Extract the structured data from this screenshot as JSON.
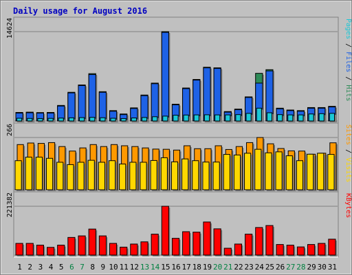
{
  "chart_data": {
    "title": "Daily usage for August 2016",
    "type": "bar",
    "x": [
      "1",
      "2",
      "3",
      "4",
      "5",
      "6",
      "7",
      "8",
      "9",
      "10",
      "11",
      "12",
      "13",
      "14",
      "15",
      "16",
      "17",
      "18",
      "19",
      "20",
      "21",
      "22",
      "23",
      "24",
      "25",
      "26",
      "27",
      "28",
      "29",
      "30",
      "31"
    ],
    "weekend_days": [
      "6",
      "7",
      "13",
      "14",
      "20",
      "21",
      "27",
      "28"
    ],
    "panels": [
      {
        "id": "top",
        "ymax_label": "14624",
        "ymax": 14624,
        "right_label": {
          "parts": [
            "Pages",
            " / ",
            "Files",
            " / ",
            "Hits"
          ]
        },
        "series": [
          {
            "name": "Hits",
            "color": "#2e8b57",
            "values": [
              1400,
              1450,
              1380,
              1400,
              2550,
              4700,
              5900,
              7750,
              4800,
              1700,
              1150,
              2150,
              4250,
              6200,
              14624,
              2750,
              5400,
              6800,
              8800,
              8700,
              1550,
              1950,
              3950,
              7800,
              8400,
              2100,
              1800,
              1700,
              2200,
              2200,
              2400
            ]
          },
          {
            "name": "Files",
            "color": "#1e62e6",
            "values": [
              1300,
              1350,
              1300,
              1300,
              2450,
              4600,
              5800,
              7600,
              4700,
              1600,
              1050,
              2050,
              4150,
              6100,
              14500,
              2650,
              5300,
              6700,
              8700,
              8600,
              1450,
              1850,
              3850,
              6200,
              8200,
              2000,
              1700,
              1600,
              2100,
              2100,
              2300
            ]
          },
          {
            "name": "Pages",
            "color": "#19c8d7",
            "values": [
              450,
              420,
              400,
              430,
              480,
              520,
              560,
              600,
              540,
              450,
              400,
              500,
              580,
              700,
              800,
              950,
              980,
              1000,
              1020,
              1000,
              1000,
              1050,
              1250,
              2100,
              1350,
              1050,
              1000,
              1000,
              1150,
              1200,
              1250
            ]
          }
        ]
      },
      {
        "id": "mid",
        "ymax_label": "266",
        "ymax": 266,
        "right_label": {
          "parts": [
            "Sites",
            " / ",
            "Visits"
          ]
        },
        "series": [
          {
            "name": "Visits",
            "color": "#ff9900",
            "values": [
              230,
              238,
              236,
              240,
              220,
              197,
              213,
              230,
              220,
              230,
              224,
              220,
              213,
              207,
              206,
              202,
              224,
              209,
              209,
              224,
              205,
              220,
              240,
              266,
              234,
              210,
              198,
              197,
              181,
              186,
              239
            ]
          },
          {
            "name": "Sites",
            "color": "#ffd700",
            "values": [
              148,
              166,
              166,
              160,
              140,
              128,
              140,
              150,
              140,
              148,
              131,
              140,
              140,
              149,
              163,
              142,
              157,
              148,
              141,
              141,
              180,
              177,
              186,
              206,
              188,
              193,
              173,
              148,
              181,
              186,
              180
            ]
          }
        ]
      },
      {
        "id": "bot",
        "ymax_label": "221382",
        "ymax": 221382,
        "right_label": {
          "parts": [
            "KBytes"
          ]
        },
        "series": [
          {
            "name": "KBytes",
            "color": "#ff0000",
            "values": [
              53000,
              53000,
              45000,
              35000,
              45000,
              80000,
              87000,
              118000,
              87000,
              53000,
              36000,
              50000,
              60000,
              95000,
              221382,
              76000,
              106000,
              104000,
              150000,
              119000,
              31000,
              50000,
              95000,
              125000,
              134000,
              48000,
              45000,
              37000,
              48000,
              53000,
              72000
            ]
          }
        ]
      }
    ]
  }
}
